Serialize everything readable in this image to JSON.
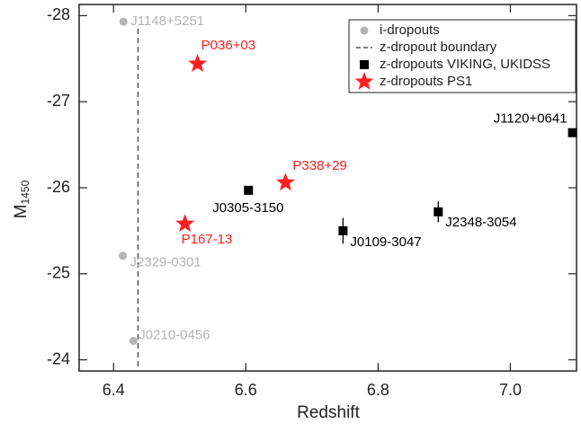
{
  "chart_data": {
    "type": "scatter",
    "xlabel": "Redshift",
    "ylabel": "M",
    "ylabel_sub": "1450",
    "xlim": [
      6.348,
      7.1
    ],
    "ylim": [
      -23.87,
      -28.13
    ],
    "xticks": [
      6.4,
      6.6,
      6.8,
      {
        "value": 7,
        "label": "7.0"
      }
    ],
    "yticks": [
      -28,
      -27,
      -26,
      -25,
      -24
    ],
    "boundary": {
      "name": "z-dropout boundary",
      "x": 6.437,
      "color": "#555555"
    },
    "series": [
      {
        "name": "i-dropouts",
        "marker": "circle",
        "color": "#b4b4b4",
        "x": [
          6.415,
          6.414,
          6.43
        ],
        "y": [
          -27.93,
          -25.21,
          -24.22
        ],
        "labels": [
          "J1148+5251",
          "J2329-0301",
          "J0210-0456"
        ]
      },
      {
        "name": "z-dropouts VIKING, UKIDSS",
        "marker": "square",
        "color": "#000000",
        "x": [
          7.094,
          6.604,
          6.747,
          6.891
        ],
        "y": [
          -26.64,
          -25.97,
          -25.5,
          -25.72
        ],
        "yerr": [
          0.05,
          0.05,
          0.15,
          0.12
        ],
        "labels": [
          "J1120+0641",
          "J0305-3150",
          "J0109-3047",
          "J2348-3054"
        ]
      },
      {
        "name": "z-dropouts PS1",
        "marker": "star",
        "color": "#ff2020",
        "x": [
          6.527,
          6.66,
          6.508
        ],
        "y": [
          -27.44,
          -26.06,
          -25.58
        ],
        "labels": [
          "P036+03",
          "P338+29",
          "P167-13"
        ]
      }
    ]
  }
}
